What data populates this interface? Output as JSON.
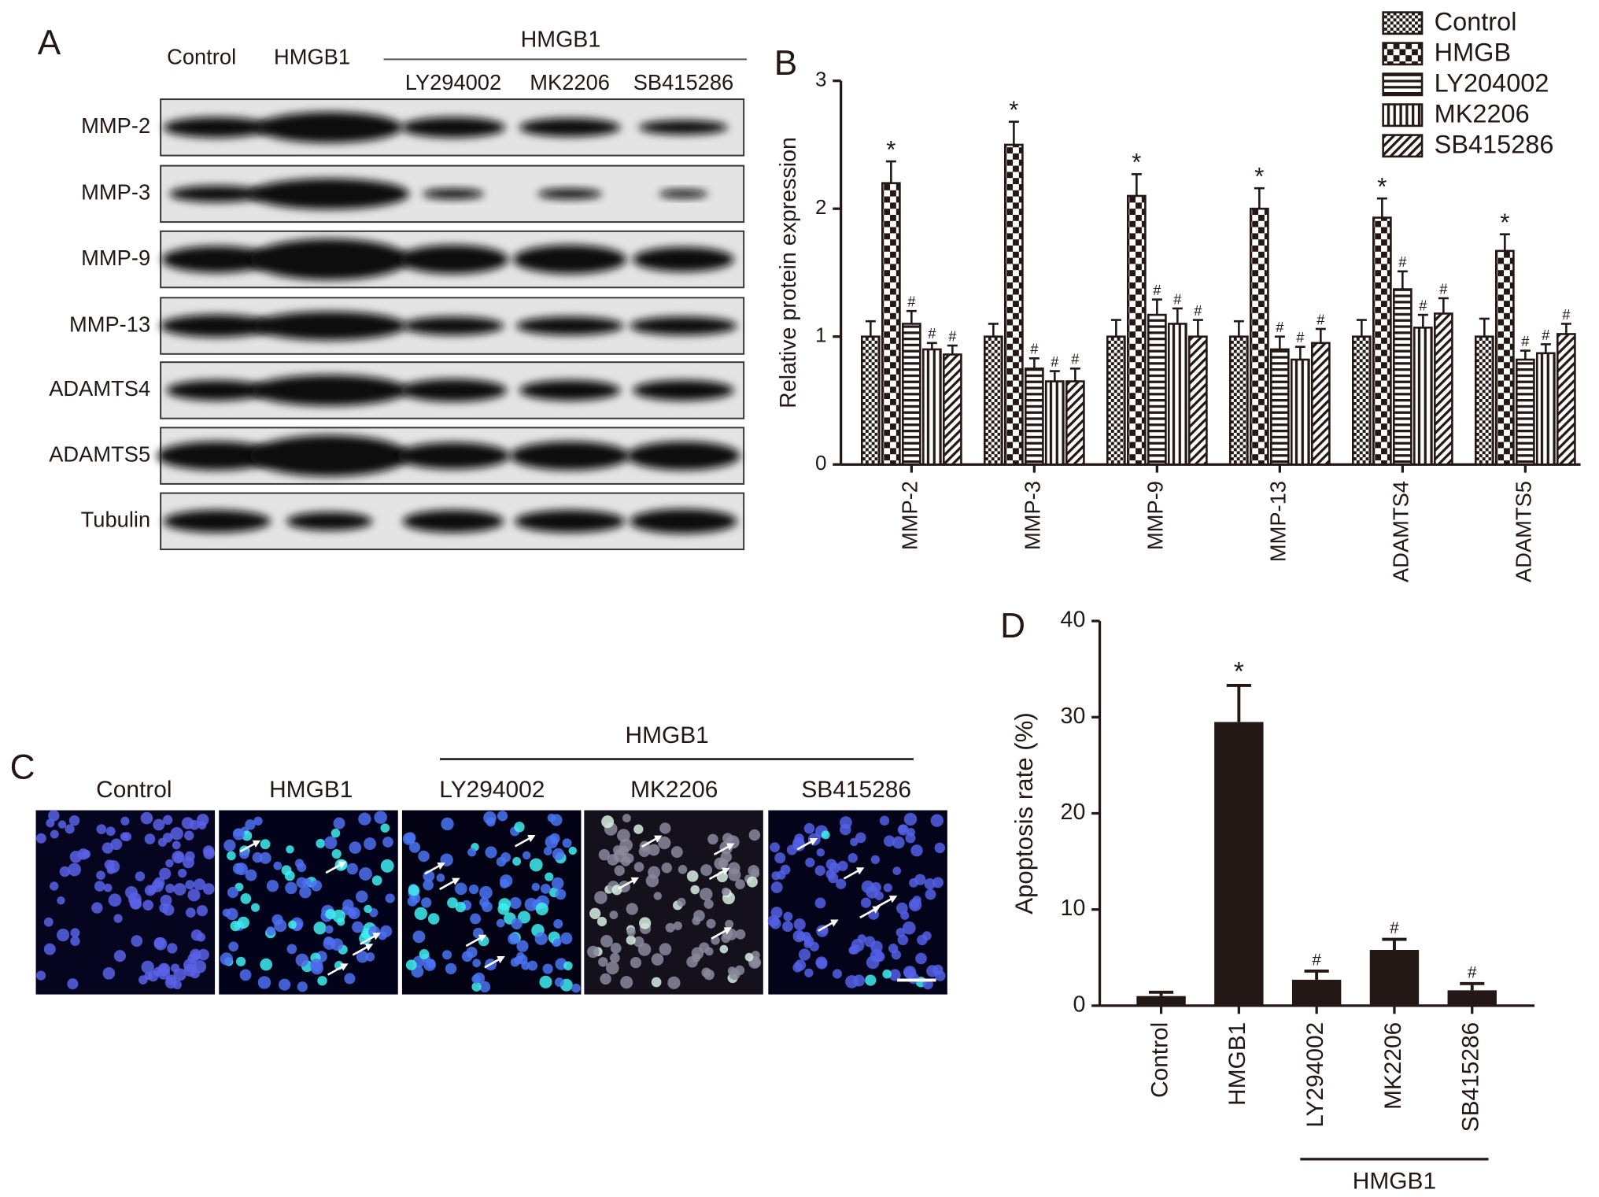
{
  "panel_labels": [
    "A",
    "B",
    "C",
    "D"
  ],
  "blot": {
    "columns": [
      "Control",
      "HMGB1"
    ],
    "group_label": "HMGB1",
    "group_columns": [
      "LY294002",
      "MK2206",
      "SB415286"
    ],
    "rows": [
      "MMP-2",
      "MMP-3",
      "MMP-9",
      "MMP-13",
      "ADAMTS4",
      "ADAMTS5",
      "Tubulin"
    ]
  },
  "micrographs": {
    "columns": [
      "Control",
      "HMGB1"
    ],
    "group_label": "HMGB1",
    "group_columns": [
      "LY294002",
      "MK2206",
      "SB415286"
    ]
  },
  "chart_data": [
    {
      "type": "bar",
      "y_label": "Relative protein expression",
      "categories": [
        "MMP-2",
        "MMP-3",
        "MMP-9",
        "MMP-13",
        "ADAMTS4",
        "ADAMTS5"
      ],
      "series": [
        {
          "name": "Control",
          "color": "#231815",
          "pattern": "checker-fine",
          "values": [
            1,
            1,
            1,
            1,
            1,
            1
          ],
          "errors": [
            0.12,
            0.1,
            0.13,
            0.12,
            0.13,
            0.14
          ]
        },
        {
          "name": "HMGB",
          "color": "#231815",
          "pattern": "checker-large",
          "values": [
            2.2,
            2.5,
            2.1,
            2.0,
            1.93,
            1.67
          ],
          "errors": [
            0.17,
            0.18,
            0.17,
            0.16,
            0.15,
            0.13
          ],
          "annotations": [
            "*",
            "*",
            "*",
            "*",
            "*",
            "*"
          ]
        },
        {
          "name": "LY204002",
          "color": "#231815",
          "pattern": "horizontal",
          "values": [
            1.1,
            0.75,
            1.17,
            0.9,
            1.37,
            0.82
          ],
          "errors": [
            0.1,
            0.08,
            0.12,
            0.1,
            0.14,
            0.07
          ],
          "annotations": [
            "#",
            "#",
            "#",
            "#",
            "#",
            "#"
          ]
        },
        {
          "name": "MK2206",
          "color": "#231815",
          "pattern": "vertical",
          "values": [
            0.9,
            0.65,
            1.1,
            0.82,
            1.07,
            0.87
          ],
          "errors": [
            0.05,
            0.08,
            0.12,
            0.1,
            0.1,
            0.07
          ],
          "annotations": [
            "#",
            "#",
            "#",
            "#",
            "#",
            "#"
          ]
        },
        {
          "name": "SB415286",
          "color": "#231815",
          "pattern": "diagonal",
          "values": [
            0.86,
            0.65,
            1.0,
            0.95,
            1.18,
            1.02
          ],
          "errors": [
            0.07,
            0.1,
            0.13,
            0.11,
            0.12,
            0.08
          ],
          "annotations": [
            "#",
            "#",
            "#",
            "#",
            "#",
            "#"
          ]
        }
      ],
      "ylim": [
        0,
        3
      ],
      "yticks": [
        0,
        1,
        2,
        3
      ],
      "grid": false,
      "legend": "top-right"
    },
    {
      "type": "bar",
      "y_label": "Apoptosis rate (%)",
      "categories": [
        "Control",
        "HMGB1",
        "LY294002",
        "MK2206",
        "SB415286"
      ],
      "values": [
        1.0,
        29.5,
        2.7,
        5.8,
        1.6
      ],
      "errors": [
        0.4,
        3.8,
        0.9,
        1.1,
        0.7
      ],
      "annotations": [
        null,
        "*",
        "#",
        "#",
        "#"
      ],
      "group_label": "HMGB1",
      "color": "#231815",
      "ylim": [
        0,
        40
      ],
      "yticks": [
        0,
        10,
        20,
        30,
        40
      ],
      "grid": false
    }
  ]
}
